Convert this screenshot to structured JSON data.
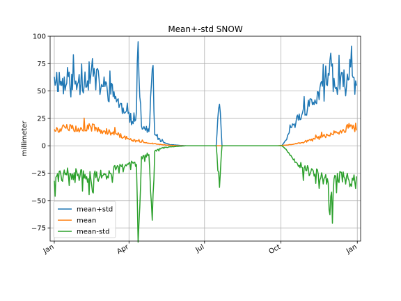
{
  "chart_data": {
    "type": "line",
    "title": "Mean+-std   SNOW",
    "xlabel": "",
    "ylabel": "millimeter",
    "x_ticks": [
      "Jan",
      "Apr",
      "Jul",
      "Oct",
      "Jan"
    ],
    "y_ticks": [
      "100",
      "75",
      "50",
      "25",
      "0",
      "−25",
      "−50",
      "−75"
    ],
    "ylim": [
      -87,
      100
    ],
    "grid": true,
    "legend_position": "lower-left",
    "colors": {
      "mean+std": "#1f77b4",
      "mean": "#ff7f0e",
      "mean-std": "#2ca02c"
    },
    "series": [
      {
        "name": "mean+std",
        "key_points": [
          [
            1,
            63
          ],
          [
            15,
            55
          ],
          [
            30,
            58
          ],
          [
            45,
            64
          ],
          [
            60,
            54
          ],
          [
            75,
            45
          ],
          [
            85,
            30
          ],
          [
            95,
            22
          ],
          [
            100,
            31
          ],
          [
            102,
            95
          ],
          [
            106,
            18
          ],
          [
            115,
            13
          ],
          [
            119,
            70
          ],
          [
            122,
            10
          ],
          [
            130,
            4
          ],
          [
            140,
            1
          ],
          [
            160,
            0
          ],
          [
            196,
            0
          ],
          [
            200,
            38
          ],
          [
            203,
            0
          ],
          [
            250,
            0
          ],
          [
            275,
            0
          ],
          [
            280,
            5
          ],
          [
            290,
            20
          ],
          [
            300,
            30
          ],
          [
            315,
            42
          ],
          [
            330,
            55
          ],
          [
            333,
            78
          ],
          [
            340,
            52
          ],
          [
            355,
            60
          ],
          [
            358,
            72
          ],
          [
            365,
            55
          ]
        ]
      },
      {
        "name": "mean",
        "key_points": [
          [
            1,
            15
          ],
          [
            15,
            16
          ],
          [
            30,
            16
          ],
          [
            45,
            17
          ],
          [
            60,
            13
          ],
          [
            75,
            11
          ],
          [
            85,
            8
          ],
          [
            95,
            5
          ],
          [
            110,
            3
          ],
          [
            130,
            1
          ],
          [
            150,
            0
          ],
          [
            270,
            0
          ],
          [
            285,
            1
          ],
          [
            300,
            3
          ],
          [
            315,
            6
          ],
          [
            330,
            10
          ],
          [
            345,
            13
          ],
          [
            357,
            17
          ],
          [
            365,
            14
          ]
        ]
      },
      {
        "name": "mean-std",
        "key_points": [
          [
            1,
            -32
          ],
          [
            15,
            -25
          ],
          [
            30,
            -26
          ],
          [
            45,
            -30
          ],
          [
            60,
            -27
          ],
          [
            75,
            -22
          ],
          [
            85,
            -20
          ],
          [
            95,
            -15
          ],
          [
            100,
            -17
          ],
          [
            102,
            -88
          ],
          [
            106,
            -10
          ],
          [
            115,
            -8
          ],
          [
            119,
            -68
          ],
          [
            122,
            -5
          ],
          [
            130,
            -2
          ],
          [
            140,
            -1
          ],
          [
            160,
            0
          ],
          [
            196,
            0
          ],
          [
            200,
            -38
          ],
          [
            203,
            0
          ],
          [
            250,
            0
          ],
          [
            275,
            0
          ],
          [
            280,
            -3
          ],
          [
            290,
            -12
          ],
          [
            300,
            -20
          ],
          [
            315,
            -26
          ],
          [
            330,
            -30
          ],
          [
            333,
            -63
          ],
          [
            340,
            -28
          ],
          [
            355,
            -30
          ],
          [
            358,
            -35
          ],
          [
            365,
            -28
          ]
        ]
      }
    ]
  }
}
